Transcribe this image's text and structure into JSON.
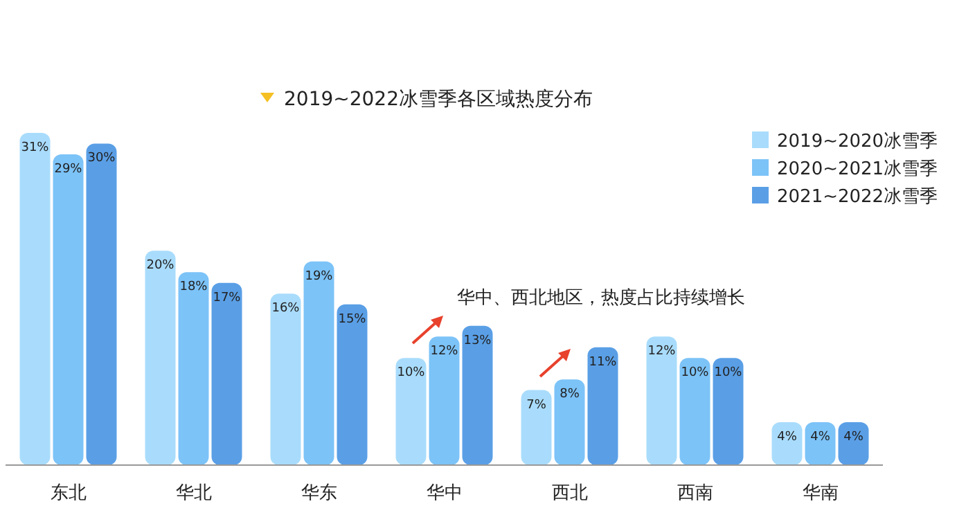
{
  "chart_data": {
    "type": "bar",
    "title": "2019~2022冰雪季各区域热度分布",
    "categories": [
      "东北",
      "华北",
      "华东",
      "华中",
      "西北",
      "西南",
      "华南"
    ],
    "series": [
      {
        "name": "2019~2020冰雪季",
        "color": "#a9dcfc",
        "values": [
          31,
          20,
          16,
          10,
          7,
          12,
          4
        ],
        "value_labels": [
          "31%",
          "20%",
          "16%",
          "10%",
          "7%",
          "12%",
          "4%"
        ]
      },
      {
        "name": "2020~2021冰雪季",
        "color": "#7cc3f8",
        "values": [
          29,
          18,
          19,
          12,
          8,
          10,
          4
        ],
        "value_labels": [
          "29%",
          "18%",
          "19%",
          "12%",
          "8%",
          "10%",
          "4%"
        ]
      },
      {
        "name": "2021~2022冰雪季",
        "color": "#5a9fe6",
        "values": [
          30,
          17,
          15,
          13,
          11,
          10,
          4
        ],
        "value_labels": [
          "30%",
          "17%",
          "15%",
          "13%",
          "11%",
          "10%",
          "4%"
        ]
      }
    ],
    "legend": "top right",
    "annotations": [
      "华中、西北地区，热度占比持续增长"
    ]
  }
}
